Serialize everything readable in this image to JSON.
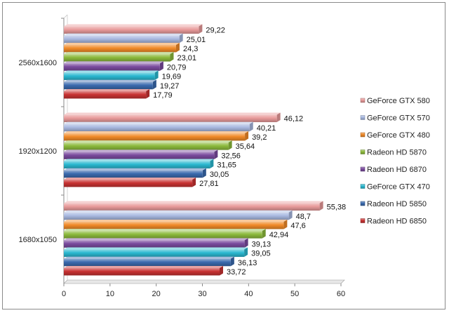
{
  "chart_data": {
    "type": "bar",
    "orientation": "horizontal",
    "categories": [
      "2560x1600",
      "1920x1200",
      "1680x1050"
    ],
    "series": [
      {
        "name": "GeForce GTX 580",
        "values": [
          29.22,
          46.12,
          55.38
        ],
        "labels": [
          "29,22",
          "46,12",
          "55,38"
        ],
        "color": "#e89a9a"
      },
      {
        "name": "GeForce GTX 570",
        "values": [
          25.01,
          40.21,
          48.7
        ],
        "labels": [
          "25,01",
          "40,21",
          "48,7"
        ],
        "color": "#a8b8e0"
      },
      {
        "name": "GeForce GTX 480",
        "values": [
          24.3,
          39.2,
          47.6
        ],
        "labels": [
          "24,3",
          "39,2",
          "47,6"
        ],
        "color": "#f08a28"
      },
      {
        "name": "Radeon HD 5870",
        "values": [
          23.01,
          35.64,
          42.94
        ],
        "labels": [
          "23,01",
          "35,64",
          "42,94"
        ],
        "color": "#8cba3c"
      },
      {
        "name": "Radeon HD 6870",
        "values": [
          20.79,
          32.56,
          39.13
        ],
        "labels": [
          "20,79",
          "32,56",
          "39,13"
        ],
        "color": "#7a4a9e"
      },
      {
        "name": "GeForce GTX 470",
        "values": [
          19.69,
          31.65,
          39.05
        ],
        "labels": [
          "19,69",
          "31,65",
          "39,05"
        ],
        "color": "#2ab8d0"
      },
      {
        "name": "Radeon HD 5850",
        "values": [
          19.27,
          30.05,
          36.13
        ],
        "labels": [
          "19,27",
          "30,05",
          "36,13"
        ],
        "color": "#3a6aae"
      },
      {
        "name": "Radeon HD 6850",
        "values": [
          17.79,
          27.81,
          33.72
        ],
        "labels": [
          "17,79",
          "27,81",
          "33,72"
        ],
        "color": "#c83232"
      }
    ],
    "xlim": [
      0,
      60
    ],
    "xticks": [
      0,
      10,
      20,
      30,
      40,
      50,
      60
    ],
    "grid": false,
    "legend_position": "right"
  }
}
